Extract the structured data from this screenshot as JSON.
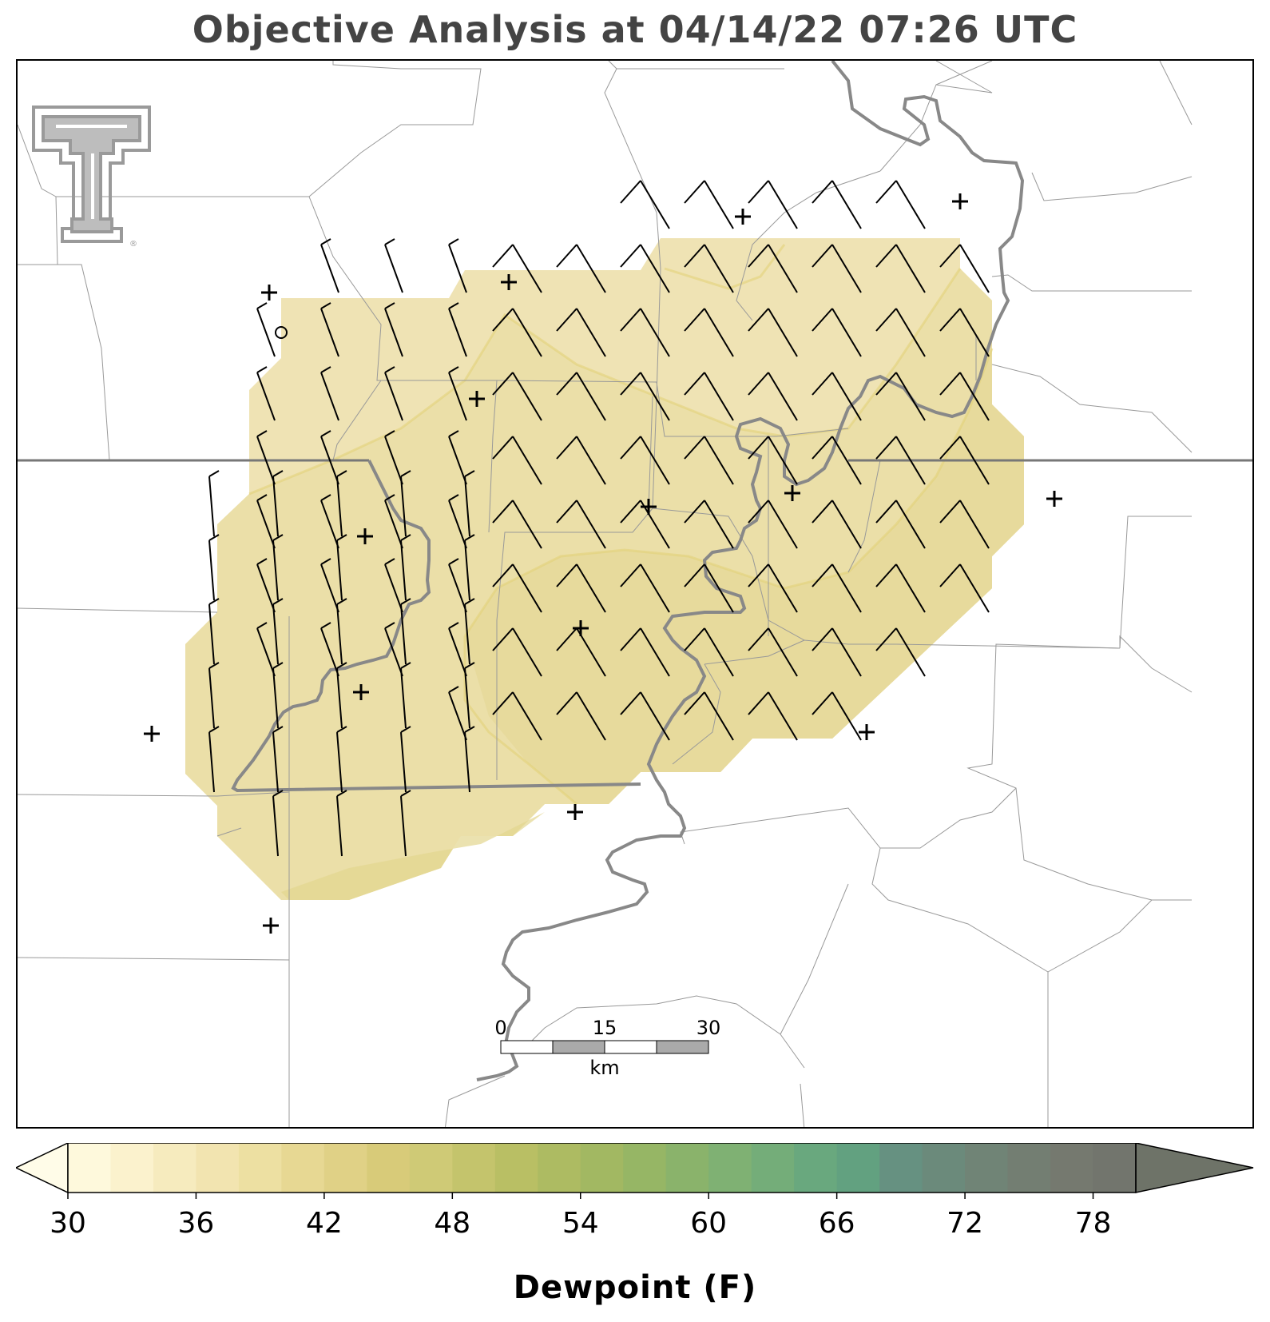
{
  "title": "Objective Analysis at 04/14/22 07:26 UTC",
  "logo": {
    "name": "texas-tech-double-t-logo",
    "text": "®"
  },
  "scalebar": {
    "labels": [
      "0",
      "15",
      "30"
    ],
    "unit": "km"
  },
  "colorbar": {
    "label": "Dewpoint (F)",
    "min": 30,
    "max": 80,
    "step": 2,
    "extend": "both",
    "tick_labels": [
      "30",
      "36",
      "42",
      "48",
      "54",
      "60",
      "66",
      "72",
      "78"
    ],
    "colors": [
      "#fef9dc",
      "#fbf2cd",
      "#f6ebbe",
      "#f2e4b0",
      "#ede0a2",
      "#e7d893",
      "#e0d186",
      "#d8cb79",
      "#cfca76",
      "#c4c46c",
      "#b9bf64",
      "#adbb62",
      "#a2b862",
      "#96b665",
      "#8ab36b",
      "#7fb173",
      "#74ad79",
      "#69a87e",
      "#62a180",
      "#669181",
      "#6b8a7b",
      "#708476",
      "#737e72",
      "#75796f",
      "#72756d"
    ],
    "under_color": "#fffce8",
    "over_color": "#6e7368"
  },
  "map_data": {
    "field": "Dewpoint (F)",
    "analysis_range": [
      38,
      44
    ],
    "stations": 14,
    "calm_station": "o",
    "wind_barbs": "northwesterly, mostly 5-10 kt"
  }
}
